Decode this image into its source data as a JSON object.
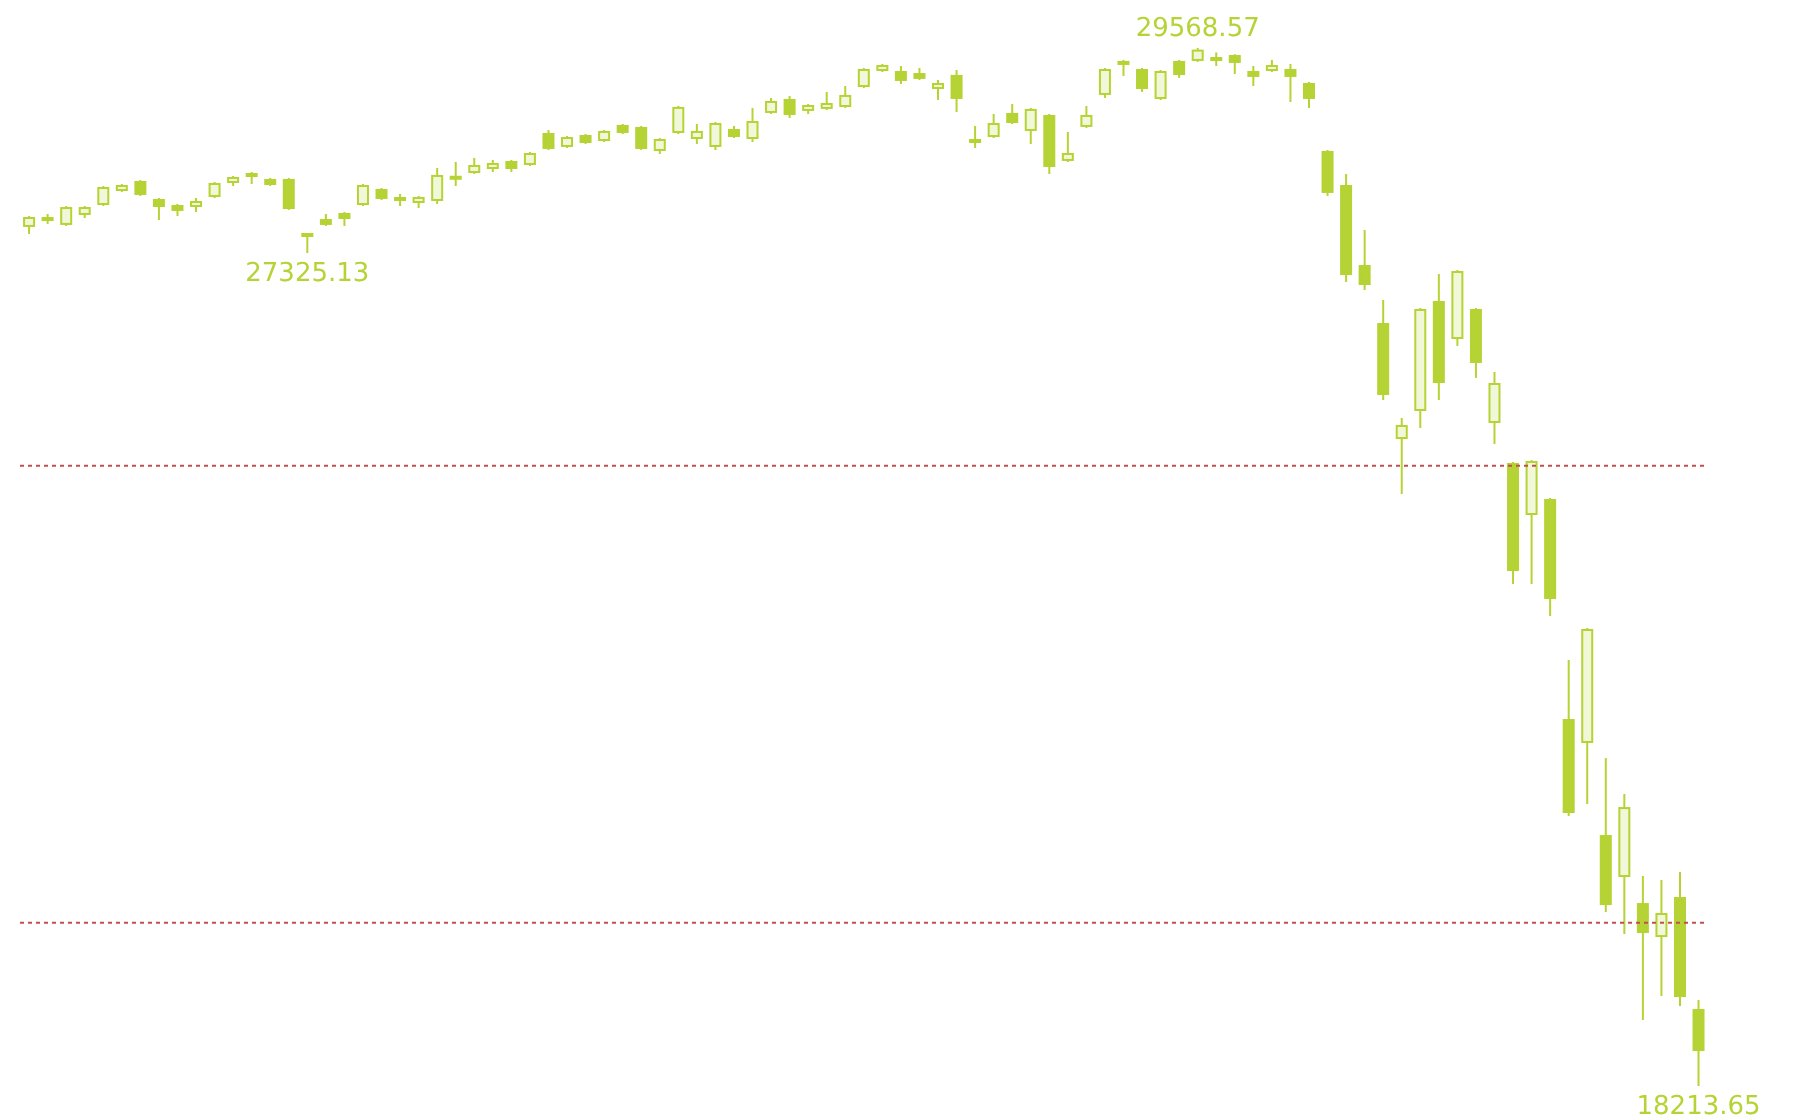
{
  "chart_data": {
    "type": "candlestick",
    "categories": [
      null,
      null,
      null,
      null,
      null,
      null,
      null,
      null,
      null,
      null,
      null,
      null,
      null,
      null,
      null,
      null,
      null,
      null,
      null,
      null,
      null,
      null,
      null,
      null,
      null,
      null,
      null,
      null,
      null,
      null,
      null,
      null,
      null,
      null,
      null,
      null,
      null,
      null,
      null,
      null,
      null,
      null,
      null,
      null,
      null,
      null,
      null,
      null,
      null,
      null,
      null,
      null,
      null,
      null,
      null,
      null,
      null,
      null,
      null,
      null,
      null,
      null,
      null,
      null,
      null,
      null,
      null,
      null,
      null,
      null,
      null,
      null,
      null,
      null,
      null,
      null,
      null,
      null,
      null,
      null,
      null,
      null,
      null,
      null,
      null,
      null,
      null,
      null,
      null,
      null,
      null
    ],
    "color": "#b5d334",
    "tick_labels": false,
    "ohlc": [
      [
        27622,
        27731,
        27534,
        27709
      ],
      [
        27709,
        27753,
        27644,
        27700
      ],
      [
        27644,
        27840,
        27622,
        27818
      ],
      [
        27753,
        27840,
        27709,
        27818
      ],
      [
        27862,
        28059,
        27840,
        28037
      ],
      [
        28015,
        28081,
        27994,
        28059
      ],
      [
        28103,
        28125,
        27950,
        27972
      ],
      [
        27906,
        27928,
        27687,
        27840
      ],
      [
        27840,
        27862,
        27731,
        27797
      ],
      [
        27840,
        27928,
        27775,
        27884
      ],
      [
        27950,
        28103,
        27928,
        28081
      ],
      [
        28103,
        28169,
        28059,
        28147
      ],
      [
        28190,
        28212,
        28081,
        28169
      ],
      [
        28125,
        28147,
        28059,
        28081
      ],
      [
        28125,
        28147,
        27797,
        27818
      ],
      [
        27534,
        27545,
        27325.13,
        27512
      ],
      [
        27687,
        27753,
        27622,
        27644
      ],
      [
        27753,
        27775,
        27622,
        27709
      ],
      [
        27862,
        28081,
        27840,
        28059
      ],
      [
        28015,
        28037,
        27906,
        27928
      ],
      [
        27928,
        27972,
        27840,
        27906
      ],
      [
        27884,
        27950,
        27818,
        27928
      ],
      [
        27906,
        28256,
        27862,
        28169
      ],
      [
        28147,
        28322,
        28059,
        28160
      ],
      [
        28212,
        28366,
        28190,
        28278
      ],
      [
        28256,
        28344,
        28212,
        28300
      ],
      [
        28322,
        28344,
        28212,
        28256
      ],
      [
        28300,
        28431,
        28278,
        28409
      ],
      [
        28628,
        28672,
        28453,
        28475
      ],
      [
        28497,
        28606,
        28475,
        28584
      ],
      [
        28606,
        28628,
        28519,
        28540
      ],
      [
        28562,
        28672,
        28540,
        28650
      ],
      [
        28716,
        28737,
        28628,
        28650
      ],
      [
        28694,
        28716,
        28453,
        28475
      ],
      [
        28453,
        28584,
        28409,
        28562
      ],
      [
        28650,
        28934,
        28628,
        28913
      ],
      [
        28584,
        28737,
        28519,
        28650
      ],
      [
        28497,
        28759,
        28453,
        28737
      ],
      [
        28672,
        28716,
        28584,
        28606
      ],
      [
        28584,
        28913,
        28540,
        28759
      ],
      [
        28869,
        29022,
        28847,
        28978
      ],
      [
        29000,
        29044,
        28803,
        28847
      ],
      [
        28891,
        28956,
        28847,
        28934
      ],
      [
        28913,
        29088,
        28891,
        28956
      ],
      [
        28934,
        29153,
        28913,
        29044
      ],
      [
        29153,
        29350,
        29131,
        29328
      ],
      [
        29328,
        29394,
        29306,
        29372
      ],
      [
        29306,
        29372,
        29175,
        29219
      ],
      [
        29284,
        29350,
        29219,
        29241
      ],
      [
        29131,
        29219,
        29000,
        29175
      ],
      [
        29263,
        29328,
        28869,
        29022
      ],
      [
        28562,
        28716,
        28475,
        28540
      ],
      [
        28606,
        28847,
        28584,
        28737
      ],
      [
        28847,
        28956,
        28737,
        28759
      ],
      [
        28672,
        28913,
        28519,
        28891
      ],
      [
        28825,
        28847,
        28190,
        28278
      ],
      [
        28344,
        28650,
        28322,
        28409
      ],
      [
        28716,
        28934,
        28694,
        28825
      ],
      [
        29066,
        29350,
        29022,
        29328
      ],
      [
        29394,
        29438,
        29263,
        29416
      ],
      [
        29328,
        29350,
        29088,
        29131
      ],
      [
        29022,
        29328,
        29000,
        29306
      ],
      [
        29416,
        29438,
        29241,
        29284
      ],
      [
        29438,
        29568.57,
        29416,
        29540
      ],
      [
        29459,
        29520,
        29372,
        29450
      ],
      [
        29481,
        29500,
        29284,
        29416
      ],
      [
        29306,
        29372,
        29153,
        29263
      ],
      [
        29328,
        29438,
        29306,
        29372
      ],
      [
        29328,
        29394,
        28978,
        29263
      ],
      [
        29175,
        29197,
        28913,
        29022
      ],
      [
        28431,
        28453,
        27950,
        27994
      ],
      [
        28059,
        28190,
        27009,
        27096
      ],
      [
        27184,
        27578,
        26921,
        26987
      ],
      [
        26549,
        26812,
        25718,
        25784
      ],
      [
        25302,
        25521,
        24690,
        25434
      ],
      [
        25609,
        26724,
        25412,
        26703
      ],
      [
        26790,
        27096,
        25718,
        25915
      ],
      [
        26396,
        27140,
        26309,
        27118
      ],
      [
        26703,
        26724,
        25959,
        26134
      ],
      [
        25477,
        26024,
        25237,
        25893
      ],
      [
        25018,
        25040,
        23705,
        23858
      ],
      [
        24471,
        25060,
        23705,
        25040
      ],
      [
        24624,
        24646,
        23355,
        23552
      ],
      [
        22217,
        22874,
        21167,
        21211
      ],
      [
        21977,
        23224,
        21298,
        23202
      ],
      [
        20948,
        21801,
        20117,
        20204
      ],
      [
        20511,
        21408,
        19876,
        21254
      ],
      [
        20204,
        20511,
        18935,
        19898
      ],
      [
        19854,
        20467,
        19198,
        20095
      ],
      [
        20270,
        20554,
        19088,
        19198
      ],
      [
        19045,
        19154,
        18213.65,
        18607
      ]
    ],
    "ref_lines": [
      {
        "axis": "y",
        "value": 25000,
        "color": "#c0504d",
        "line_style": "dotted"
      },
      {
        "axis": "y",
        "value": 20000,
        "color": "#c0504d",
        "line_style": "dotted"
      }
    ],
    "annotations": [
      {
        "text": "29568.57",
        "y": 29568.57
      },
      {
        "text": "27325.13",
        "y": 27325.13
      },
      {
        "text": "18213.65",
        "y": 18213.65
      }
    ]
  }
}
